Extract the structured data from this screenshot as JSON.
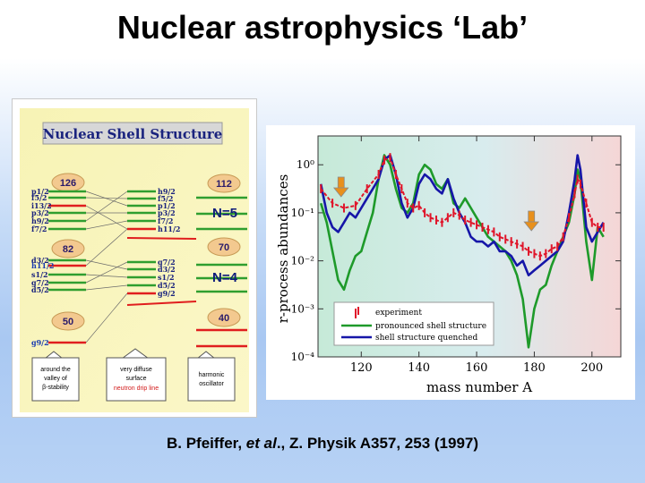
{
  "slide": {
    "title": "Nuclear astrophysics ‘Lab’",
    "citation_prefix": "B. Pfeiffer, ",
    "citation_etal": "et al",
    "citation_suffix": "., Z. Physik A357, 253 (1997)"
  },
  "shell_diagram": {
    "title": "Nuclear Shell Structure",
    "magic_left": [
      "126",
      "82",
      "50"
    ],
    "magic_right": [
      "112",
      "70",
      "40"
    ],
    "shell_labels": [
      "N=5",
      "N=4"
    ],
    "left_levels_upper": [
      "p1/2",
      "f5/2",
      "i13/2",
      "p3/2",
      "h9/2",
      "f7/2"
    ],
    "left_levels_middle": [
      "d3/2",
      "h11/2",
      "s1/2",
      "g7/2",
      "d5/2"
    ],
    "left_levels_lower": [
      "g9/2"
    ],
    "right_levels_upper": [
      "h9/2",
      "f5/2",
      "p1/2",
      "p3/2",
      "f7/2",
      "h11/2"
    ],
    "right_levels_middle": [
      "g7/2",
      "d3/2",
      "s1/2",
      "d5/2",
      "g9/2"
    ],
    "box_left": [
      "around the",
      "valley of",
      "β-stability"
    ],
    "box_middle": [
      "very diffuse",
      "surface",
      "neutron drip line"
    ],
    "box_right": [
      "harmonic",
      "oscillator"
    ]
  },
  "chart_data": {
    "type": "line",
    "xlabel": "mass number A",
    "ylabel": "r-process abundances",
    "x_ticks": [
      "120",
      "140",
      "160",
      "180",
      "200"
    ],
    "y_ticks": [
      "10⁰",
      "10⁻¹",
      "10⁻²",
      "10⁻³",
      "10⁻⁴"
    ],
    "xlim": [
      105,
      210
    ],
    "y_log_range": [
      -4,
      0.6
    ],
    "legend": [
      "experiment",
      "pronounced shell structure",
      "shell structure quenched"
    ],
    "colors": {
      "experiment": "#e0152a",
      "pronounced": "#1e9a2a",
      "quenched": "#1616a8"
    },
    "series": [
      {
        "name": "experiment",
        "x": [
          106,
          110,
          114,
          118,
          122,
          126,
          128,
          130,
          132,
          134,
          136,
          138,
          140,
          142,
          144,
          146,
          148,
          150,
          152,
          154,
          156,
          158,
          160,
          162,
          164,
          166,
          168,
          170,
          172,
          174,
          176,
          178,
          180,
          182,
          184,
          186,
          188,
          190,
          192,
          194,
          195,
          196,
          198,
          200,
          202,
          204
        ],
        "y": [
          -0.5,
          -0.8,
          -0.9,
          -0.85,
          -0.5,
          -0.2,
          0.1,
          0.15,
          -0.2,
          -0.5,
          -0.8,
          -0.9,
          -0.85,
          -1.0,
          -1.1,
          -1.15,
          -1.2,
          -1.1,
          -1.0,
          -1.05,
          -1.15,
          -1.2,
          -1.25,
          -1.3,
          -1.35,
          -1.4,
          -1.5,
          -1.55,
          -1.6,
          -1.65,
          -1.7,
          -1.8,
          -1.85,
          -1.9,
          -1.85,
          -1.75,
          -1.7,
          -1.5,
          -1.1,
          -0.6,
          -0.3,
          -0.4,
          -0.8,
          -1.2,
          -1.3,
          -1.3
        ]
      },
      {
        "name": "pronounced shell structure",
        "x": [
          106,
          108,
          110,
          112,
          114,
          116,
          118,
          120,
          122,
          124,
          126,
          128,
          130,
          132,
          134,
          136,
          138,
          140,
          142,
          144,
          146,
          148,
          150,
          152,
          154,
          156,
          158,
          160,
          162,
          164,
          166,
          168,
          170,
          172,
          174,
          176,
          178,
          180,
          182,
          184,
          186,
          188,
          190,
          192,
          194,
          195,
          196,
          198,
          200,
          202,
          204
        ],
        "y": [
          -0.8,
          -1.2,
          -1.8,
          -2.4,
          -2.6,
          -2.2,
          -1.9,
          -1.8,
          -1.4,
          -1.0,
          -0.3,
          0.2,
          0.0,
          -0.5,
          -0.9,
          -1.0,
          -0.8,
          -0.2,
          0.0,
          -0.1,
          -0.4,
          -0.5,
          -0.3,
          -0.8,
          -0.9,
          -0.7,
          -0.9,
          -1.1,
          -1.3,
          -1.5,
          -1.6,
          -1.7,
          -1.8,
          -2.0,
          -2.3,
          -2.8,
          -3.8,
          -3.0,
          -2.6,
          -2.5,
          -2.1,
          -1.8,
          -1.5,
          -1.2,
          -0.6,
          -0.1,
          -0.3,
          -1.6,
          -2.4,
          -1.3,
          -1.5
        ]
      },
      {
        "name": "shell structure quenched",
        "x": [
          106,
          108,
          110,
          112,
          114,
          116,
          118,
          120,
          122,
          124,
          126,
          128,
          130,
          132,
          134,
          136,
          138,
          140,
          142,
          144,
          146,
          148,
          150,
          152,
          154,
          156,
          158,
          160,
          162,
          164,
          166,
          168,
          170,
          172,
          174,
          176,
          178,
          180,
          182,
          184,
          186,
          188,
          190,
          192,
          194,
          195,
          196,
          198,
          200,
          202,
          204
        ],
        "y": [
          -0.4,
          -1.0,
          -1.3,
          -1.4,
          -1.2,
          -1.0,
          -1.1,
          -0.9,
          -0.7,
          -0.5,
          -0.3,
          0.1,
          0.2,
          -0.2,
          -0.8,
          -1.1,
          -0.9,
          -0.4,
          -0.2,
          -0.3,
          -0.5,
          -0.6,
          -0.3,
          -0.7,
          -1.0,
          -1.2,
          -1.5,
          -1.6,
          -1.6,
          -1.7,
          -1.6,
          -1.8,
          -1.8,
          -1.9,
          -2.1,
          -2.0,
          -2.3,
          -2.2,
          -2.1,
          -2.0,
          -1.9,
          -1.8,
          -1.6,
          -1.0,
          -0.3,
          0.2,
          -0.1,
          -1.3,
          -1.6,
          -1.4,
          -1.2
        ]
      }
    ],
    "arrows_at_x": [
      113,
      179
    ]
  }
}
